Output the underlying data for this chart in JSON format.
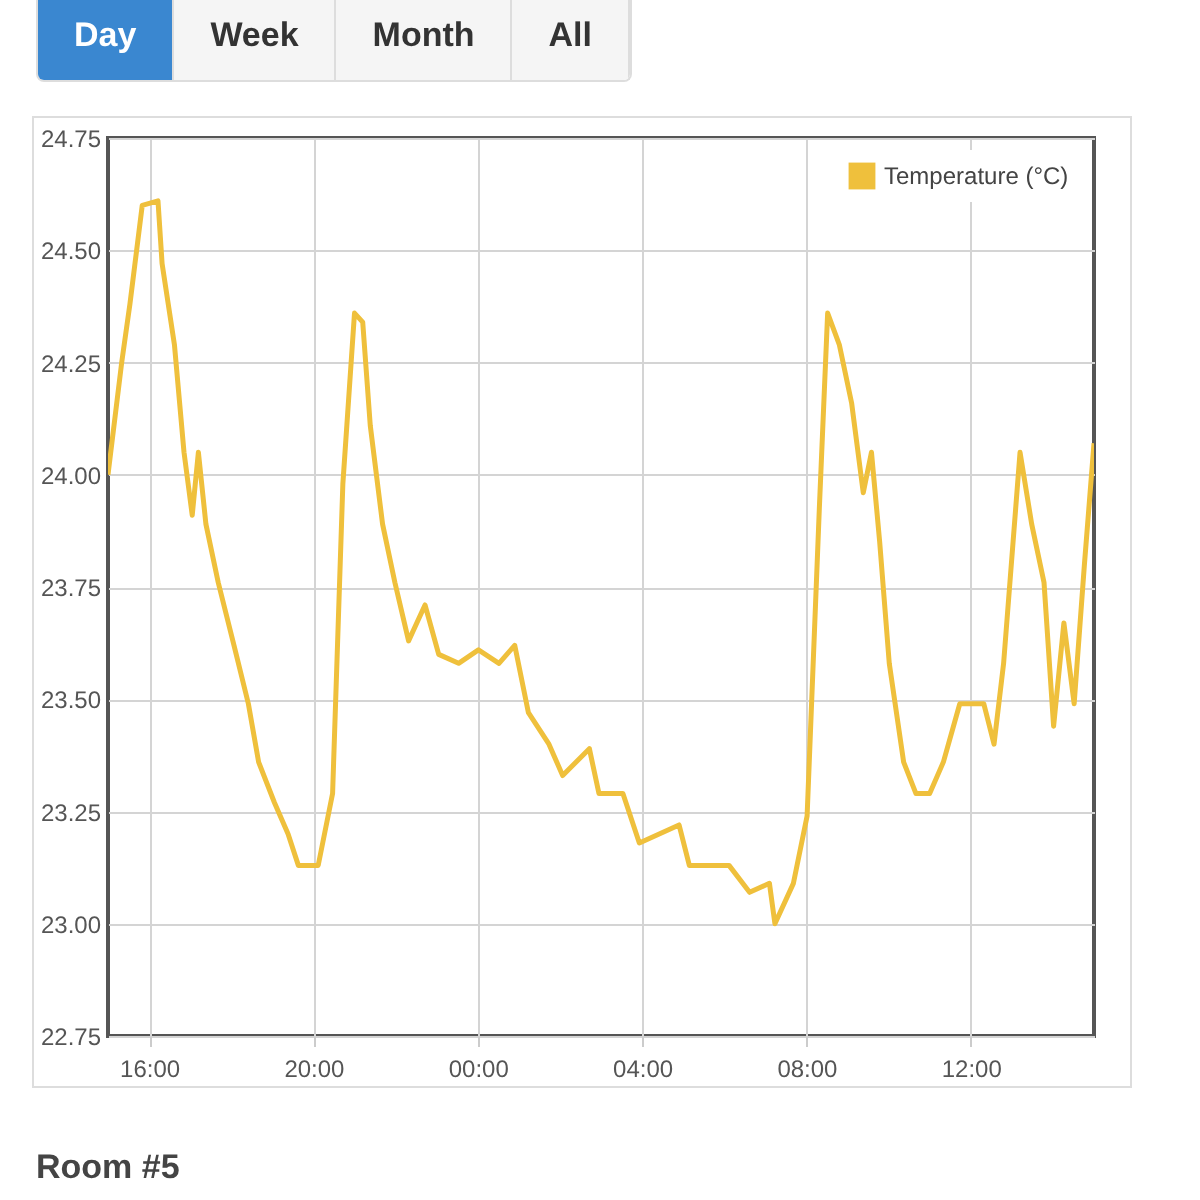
{
  "chart_data": {
    "type": "line",
    "x": [
      "--01-01T15:00",
      "--01-01T15:20",
      "--01-01T15:32",
      "--01-01T15:50",
      "--01-01T16:13",
      "--01-01T16:19",
      "--01-01T16:37",
      "--01-01T16:51",
      "--01-01T17:03",
      "--01-01T17:12",
      "--01-01T17:23",
      "--01-01T17:41",
      "--01-01T18:04",
      "--01-01T18:25",
      "--01-01T18:40",
      "--01-01T19:03",
      "--01-01T19:23",
      "--01-01T19:38",
      "--01-01T20:07",
      "--01-01T20:28",
      "--01-01T20:43",
      "--01-01T21:00",
      "--01-01T21:12",
      "--01-01T21:23",
      "--01-01T21:41",
      "--01-01T21:59",
      "--01-01T22:19",
      "--01-01T22:43",
      "--01-01T23:03",
      "--01-01T23:32",
      "--01-02T00:01",
      "--01-02T00:31",
      "--01-02T00:54",
      "--01-02T01:14",
      "--01-02T01:44",
      "--01-02T02:04",
      "--01-02T02:43",
      "--01-02T02:57",
      "--01-02T03:32",
      "--01-02T03:56",
      "--01-02T04:54",
      "--01-02T05:09",
      "--01-02T06:07",
      "--01-02T06:37",
      "--01-02T07:06",
      "--01-02T07:14",
      "--01-02T07:41",
      "--01-02T08:01",
      "--01-02T08:19",
      "--01-02T08:31",
      "--01-02T08:48",
      "--01-02T09:06",
      "--01-02T09:23",
      "--01-02T09:35",
      "--01-02T09:47",
      "--01-02T10:01",
      "--01-02T10:22",
      "--01-02T10:40",
      "--01-02T11:00",
      "--01-02T11:20",
      "--01-02T11:44",
      "--01-02T12:19",
      "--01-02T12:34",
      "--01-02T12:48",
      "--01-02T13:12",
      "--01-02T13:29",
      "--01-02T13:47",
      "--01-02T14:01",
      "--01-02T14:16",
      "--01-02T14:31",
      "--01-02T14:46",
      "--01-02T15:00"
    ],
    "series": [
      {
        "name": "Temperature (°C)",
        "color": "#efc03c",
        "values": [
          24.0,
          24.25,
          24.38,
          24.6,
          24.61,
          24.47,
          24.29,
          24.05,
          23.91,
          24.05,
          23.89,
          23.76,
          23.62,
          23.49,
          23.36,
          23.27,
          23.2,
          23.13,
          23.13,
          23.29,
          23.98,
          24.36,
          24.34,
          24.11,
          23.89,
          23.76,
          23.63,
          23.71,
          23.6,
          23.58,
          23.61,
          23.58,
          23.62,
          23.47,
          23.4,
          23.33,
          23.39,
          23.29,
          23.29,
          23.18,
          23.22,
          23.13,
          23.13,
          23.07,
          23.09,
          23.0,
          23.09,
          23.24,
          23.93,
          24.36,
          24.29,
          24.16,
          23.96,
          24.05,
          23.85,
          23.58,
          23.36,
          23.29,
          23.29,
          23.36,
          23.49,
          23.49,
          23.4,
          23.58,
          24.05,
          23.89,
          23.76,
          23.44,
          23.67,
          23.49,
          23.8,
          24.07
        ]
      }
    ],
    "xlim": [
      "--01-01T15:00",
      "--01-02T15:00"
    ],
    "xticks": [
      {
        "value": "--01-01T16:00",
        "label": "16:00"
      },
      {
        "value": "--01-01T20:00",
        "label": "20:00"
      },
      {
        "value": "--01-02T00:00",
        "label": "00:00"
      },
      {
        "value": "--01-02T04:00",
        "label": "04:00"
      },
      {
        "value": "--01-02T08:00",
        "label": "08:00"
      },
      {
        "value": "--01-02T12:00",
        "label": "12:00"
      }
    ],
    "ylim": [
      22.75,
      24.75
    ],
    "yticks": [
      {
        "value": 22.75,
        "label": "22.75"
      },
      {
        "value": 23,
        "label": "23.00"
      },
      {
        "value": 23.25,
        "label": "23.25"
      },
      {
        "value": 23.5,
        "label": "23.50"
      },
      {
        "value": 23.75,
        "label": "23.75"
      },
      {
        "value": 24,
        "label": "24.00"
      },
      {
        "value": 24.25,
        "label": "24.25"
      },
      {
        "value": 24.5,
        "label": "24.50"
      },
      {
        "value": 24.75,
        "label": "24.75"
      }
    ],
    "grid": true,
    "legend": "top right",
    "line_style": "solid",
    "annotations": [
      "Day",
      "Week",
      "Month",
      "All",
      "Room #5"
    ]
  }
}
